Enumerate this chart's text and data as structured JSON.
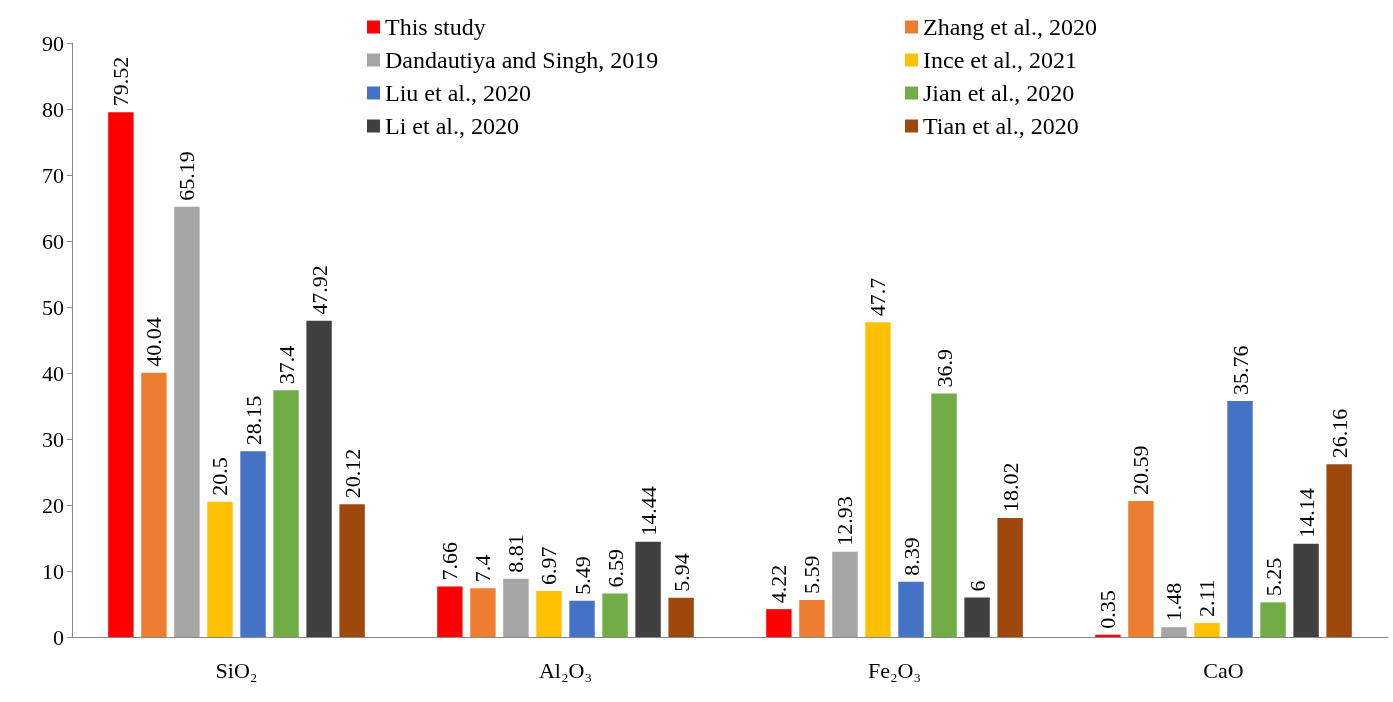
{
  "chart_data": {
    "type": "bar",
    "categories": [
      "SiO₂",
      "Al₂O₃",
      "Fe₂O₃",
      "CaO"
    ],
    "series": [
      {
        "name": "This study",
        "color": "#ff0000",
        "values": [
          79.52,
          7.66,
          4.22,
          0.35
        ]
      },
      {
        "name": "Zhang et al., 2020",
        "color": "#ed7d31",
        "values": [
          40.04,
          7.4,
          5.59,
          20.59
        ]
      },
      {
        "name": "Dandautiya and Singh, 2019",
        "color": "#a5a5a5",
        "values": [
          65.19,
          8.81,
          12.93,
          1.48
        ]
      },
      {
        "name": "Ince et al., 2021",
        "color": "#ffc000",
        "values": [
          20.5,
          6.97,
          47.7,
          2.11
        ]
      },
      {
        "name": "Liu et al., 2020",
        "color": "#4472c4",
        "values": [
          28.15,
          5.49,
          8.39,
          35.76
        ]
      },
      {
        "name": "Jian et al., 2020",
        "color": "#70ad47",
        "values": [
          37.4,
          6.59,
          36.9,
          5.25
        ]
      },
      {
        "name": "Li et al., 2020",
        "color": "#404040",
        "values": [
          47.92,
          14.44,
          6,
          14.14
        ]
      },
      {
        "name": "Tian et al., 2020",
        "color": "#9e480e",
        "values": [
          20.12,
          5.94,
          18.02,
          26.16
        ]
      }
    ],
    "ylim": [
      0,
      90
    ],
    "yticks": [
      0,
      10,
      20,
      30,
      40,
      50,
      60,
      70,
      80,
      90
    ],
    "data_labels": true,
    "legend": "top",
    "grid": false
  }
}
